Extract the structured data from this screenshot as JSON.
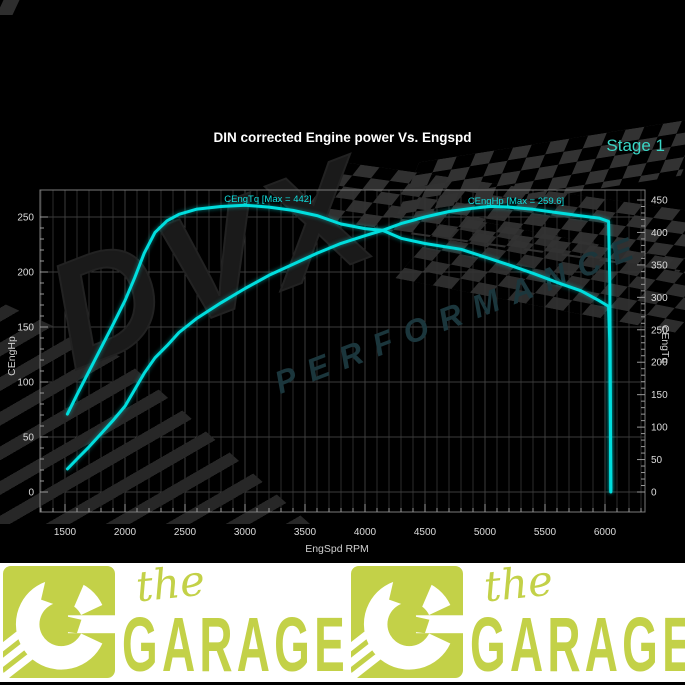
{
  "header": {
    "title": "DIN corrected Engine power Vs. Engspd",
    "stage_label": "Stage 1"
  },
  "chart_data": {
    "type": "line",
    "title": "DIN corrected Engine power Vs. Engspd",
    "xlabel": "EngSpd RPM",
    "ylabel_left": "CEngHp",
    "ylabel_right": "CEngTq",
    "grid": true,
    "legend_position": "inline-curve-labels",
    "xlim": [
      1290,
      6335
    ],
    "ylim_left": [
      -18,
      275
    ],
    "ylim_right": [
      -30,
      453
    ],
    "x_ticks": [
      1500,
      2000,
      2500,
      3000,
      3500,
      4000,
      4500,
      5000,
      5500,
      6000
    ],
    "y_left_ticks": [
      0,
      50,
      100,
      150,
      200,
      250
    ],
    "y_right_ticks": [
      0,
      50,
      100,
      150,
      200,
      250,
      300,
      350,
      400,
      450
    ],
    "series": [
      {
        "name": "CEngTq",
        "label": "CEngTq [Max = 442]",
        "axis": "right",
        "unit": "Nm",
        "max": 442,
        "points": [
          [
            1520,
            120
          ],
          [
            1600,
            150
          ],
          [
            1700,
            186
          ],
          [
            1800,
            222
          ],
          [
            1900,
            258
          ],
          [
            2000,
            295
          ],
          [
            2080,
            330
          ],
          [
            2160,
            368
          ],
          [
            2250,
            400
          ],
          [
            2350,
            418
          ],
          [
            2450,
            428
          ],
          [
            2600,
            436
          ],
          [
            2800,
            440
          ],
          [
            3000,
            442
          ],
          [
            3200,
            439
          ],
          [
            3400,
            434
          ],
          [
            3600,
            426
          ],
          [
            3800,
            413
          ],
          [
            4000,
            406
          ],
          [
            4150,
            403
          ],
          [
            4300,
            391
          ],
          [
            4500,
            383
          ],
          [
            4800,
            374
          ],
          [
            5000,
            362
          ],
          [
            5200,
            350
          ],
          [
            5400,
            337
          ],
          [
            5600,
            323
          ],
          [
            5800,
            310
          ],
          [
            5950,
            295
          ],
          [
            6030,
            286
          ],
          [
            6040,
            230
          ],
          [
            6045,
            100
          ],
          [
            6048,
            2
          ]
        ]
      },
      {
        "name": "CEngHp",
        "label": "CEngHp [Max = 259.6]",
        "axis": "left",
        "unit": "Hp",
        "max": 259.6,
        "points": [
          [
            1520,
            21
          ],
          [
            1600,
            30
          ],
          [
            1700,
            41
          ],
          [
            1800,
            53
          ],
          [
            1900,
            65
          ],
          [
            2000,
            78
          ],
          [
            2080,
            93
          ],
          [
            2160,
            108
          ],
          [
            2250,
            122
          ],
          [
            2350,
            133
          ],
          [
            2450,
            145
          ],
          [
            2600,
            158
          ],
          [
            2800,
            172
          ],
          [
            3000,
            185
          ],
          [
            3200,
            197
          ],
          [
            3400,
            207
          ],
          [
            3600,
            217
          ],
          [
            3800,
            226
          ],
          [
            4000,
            233
          ],
          [
            4150,
            238
          ],
          [
            4300,
            244
          ],
          [
            4500,
            250
          ],
          [
            4700,
            255
          ],
          [
            4900,
            258
          ],
          [
            5050,
            259.6
          ],
          [
            5200,
            259
          ],
          [
            5400,
            257
          ],
          [
            5600,
            254
          ],
          [
            5800,
            251
          ],
          [
            5950,
            249
          ],
          [
            6030,
            246
          ],
          [
            6040,
            190
          ],
          [
            6045,
            80
          ],
          [
            6048,
            0
          ]
        ]
      }
    ],
    "line_color": "#00dede"
  },
  "watermarks": {
    "dvx": "DVX",
    "performance": "PERFORMANCE"
  },
  "footer": {
    "the_label": "the",
    "garage_label": "GARAGE"
  },
  "colors": {
    "background": "#000000",
    "curve_cyan": "#00dede",
    "stage_teal": "#3ad6c6",
    "logo_lime": "#c3d148",
    "banner_white": "#ffffff",
    "grid_gray": "#3d3d3d"
  }
}
